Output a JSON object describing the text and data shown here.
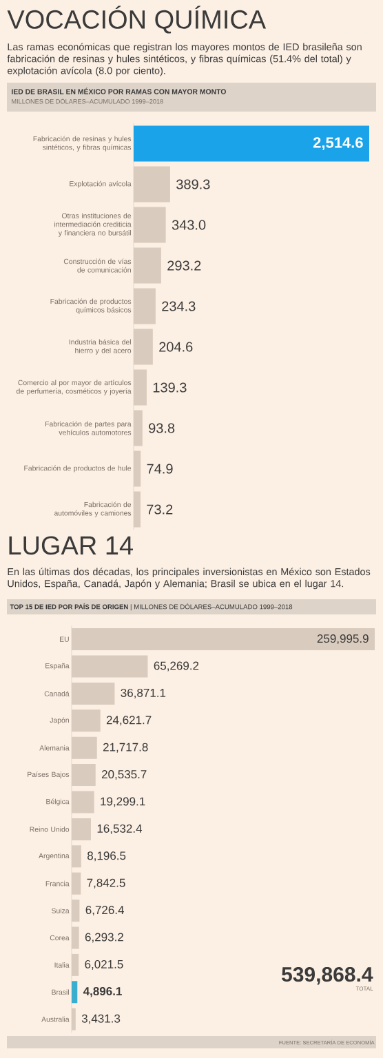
{
  "chart_data": [
    {
      "type": "bar",
      "orientation": "horizontal",
      "title": "VOCACIÓN QUÍMICA",
      "subtitle": "Las ramas económicas que registran los mayores montos de IED brasileña son fabricación de resinas y hules sintéticos, y fibras químicas (51.4% del total) y explotación avícola (8.0 por ciento).",
      "annotations": [
        "IED DE BRASIL EN MÉXICO POR RAMAS CON MAYOR MONTO",
        "MILLONES DE DÓLARES–ACUMULADO 1999–2018"
      ],
      "categories": [
        "Fabricación de resinas y hules sintéticos, y fibras químicas",
        "Explotación avícola",
        "Otras instituciones de intermediación crediticia y financiera no bursátil",
        "Construcción de vías de comunicación",
        "Fabricación de productos químicos básicos",
        "Industria básica del hierro y del acero",
        "Comercio al por mayor de artículos de perfumería, cosméticos y joyería",
        "Fabricación de partes para vehículos automotores",
        "Fabricación de productos de hule",
        "Fabricación de automóviles y camiones"
      ],
      "values": [
        2514.6,
        389.3,
        343.0,
        293.2,
        234.3,
        204.6,
        139.3,
        93.8,
        74.9,
        73.2
      ],
      "colors": [
        "#1aa3e8",
        "#d9cbbd",
        "#d9cbbd",
        "#d9cbbd",
        "#d9cbbd",
        "#d9cbbd",
        "#d9cbbd",
        "#d9cbbd",
        "#d9cbbd",
        "#d9cbbd"
      ],
      "value_labels": [
        "2,514.6",
        "389.3",
        "343.0",
        "293.2",
        "234.3",
        "204.6",
        "139.3",
        "93.8",
        "74.9",
        "73.2"
      ],
      "tick_labels": "y"
    },
    {
      "type": "bar",
      "orientation": "horizontal",
      "title": "LUGAR 14",
      "subtitle": "En las últimas dos décadas, los principales inversionistas en México son Estados Unidos, España, Canadá, Japón y Alemania; Brasil se ubica en el lugar 14.",
      "annotations": [
        "**TOP 15 DE IED POR PAÍS DE ORIGEN** | MILLONES DE DÓLARES–ACUMULADO 1999–2018",
        "539,868.4",
        "TOTAL",
        "FUENTE: SECRETARÍA DE ECONOMÍA"
      ],
      "categories": [
        "EU",
        "España",
        "Canadá",
        "Japón",
        "Alemania",
        "Países Bajos",
        "Bélgica",
        "Reino Unido",
        "Argentina",
        "Francia",
        "Suiza",
        "Corea",
        "Italia",
        "Brasil",
        "Australia"
      ],
      "values": [
        259995.9,
        65269.2,
        36871.1,
        24621.7,
        21717.8,
        20535.7,
        19299.1,
        16532.4,
        8196.5,
        7842.5,
        6726.4,
        6293.2,
        6021.5,
        4896.1,
        3431.3
      ],
      "colors": [
        "#d9cbbd",
        "#d9cbbd",
        "#d9cbbd",
        "#d9cbbd",
        "#d9cbbd",
        "#d9cbbd",
        "#d9cbbd",
        "#d9cbbd",
        "#d9cbbd",
        "#d9cbbd",
        "#d9cbbd",
        "#d9cbbd",
        "#d9cbbd",
        "#3aaecf",
        "#d9cbbd"
      ],
      "value_labels": [
        "259,995.9",
        "65,269.2",
        "36,871.1",
        "24,621.7",
        "21,717.8",
        "20,535.7",
        "19,299.1",
        "16,532.4",
        "8,196.5",
        "7,842.5",
        "6,726.4",
        "6,293.2",
        "6,021.5",
        "**4,896.1**",
        "3,431.3"
      ],
      "tick_labels": "y"
    }
  ]
}
